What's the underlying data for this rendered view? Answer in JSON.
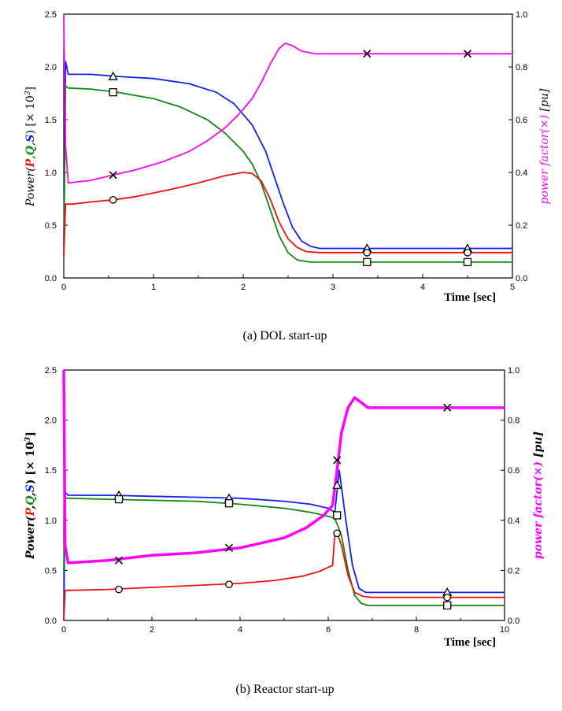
{
  "colors": {
    "P": "#ee1111",
    "Q": "#118811",
    "S": "#1122ee",
    "pf": "#ff00ff",
    "axis": "#000000"
  },
  "chart_data": [
    {
      "type": "line",
      "caption": "(a)  DOL  start-up",
      "xlabel": "Time [sec]",
      "ylabel": {
        "prefix": "Power(",
        "P": "P",
        "c1": ",",
        "Q": "Q",
        "c2": ",",
        "S": "S",
        "suffix": ") [× 10",
        "sup": "3",
        "end": "]"
      },
      "y2label": {
        "main": "power factor(×) ",
        "unit": "[pu]"
      },
      "xlim": [
        0,
        5
      ],
      "ylim": [
        0,
        2.5
      ],
      "y2lim": [
        0,
        1.0
      ],
      "xticks": [
        "0",
        "1",
        "2",
        "3",
        "4",
        "5"
      ],
      "yticks": [
        "0.0",
        "0.5",
        "1.0",
        "1.5",
        "2.0",
        "2.5"
      ],
      "y2ticks": [
        "0.0",
        "0.2",
        "0.4",
        "0.6",
        "0.8",
        "1.0"
      ],
      "series": [
        {
          "key": "S",
          "marker": "triangle",
          "axis": "left",
          "x": [
            0,
            0.02,
            0.05,
            0.3,
            0.6,
            1.0,
            1.4,
            1.7,
            1.9,
            2.1,
            2.25,
            2.35,
            2.45,
            2.55,
            2.65,
            2.75,
            2.85,
            3.0,
            5.0
          ],
          "y": [
            0.3,
            2.05,
            1.93,
            1.93,
            1.91,
            1.89,
            1.84,
            1.76,
            1.65,
            1.45,
            1.2,
            0.95,
            0.7,
            0.48,
            0.35,
            0.3,
            0.28,
            0.28,
            0.28
          ],
          "markers": [
            [
              0.55,
              1.91
            ],
            [
              3.38,
              0.28
            ],
            [
              4.5,
              0.28
            ]
          ]
        },
        {
          "key": "Q",
          "marker": "square",
          "axis": "left",
          "x": [
            0,
            0.02,
            0.05,
            0.3,
            0.6,
            1.0,
            1.3,
            1.6,
            1.8,
            2.0,
            2.1,
            2.2,
            2.3,
            2.4,
            2.5,
            2.6,
            2.75,
            3.0,
            5.0
          ],
          "y": [
            0.2,
            1.82,
            1.8,
            1.79,
            1.76,
            1.7,
            1.62,
            1.5,
            1.37,
            1.2,
            1.08,
            0.9,
            0.65,
            0.4,
            0.24,
            0.17,
            0.15,
            0.15,
            0.15
          ],
          "markers": [
            [
              0.55,
              1.76
            ],
            [
              3.38,
              0.15
            ],
            [
              4.5,
              0.15
            ]
          ]
        },
        {
          "key": "P",
          "marker": "circle",
          "axis": "left",
          "x": [
            0,
            0.02,
            0.1,
            0.3,
            0.55,
            0.8,
            1.2,
            1.5,
            1.8,
            2.0,
            2.1,
            2.2,
            2.3,
            2.4,
            2.5,
            2.6,
            2.7,
            2.85,
            3.0,
            5.0
          ],
          "y": [
            0.2,
            0.7,
            0.7,
            0.72,
            0.74,
            0.77,
            0.84,
            0.9,
            0.97,
            1.0,
            0.99,
            0.92,
            0.75,
            0.53,
            0.37,
            0.29,
            0.25,
            0.24,
            0.24,
            0.24
          ],
          "markers": [
            [
              0.55,
              0.74
            ],
            [
              3.38,
              0.24
            ],
            [
              4.5,
              0.24
            ]
          ]
        },
        {
          "key": "pf",
          "marker": "x",
          "axis": "right",
          "x": [
            0,
            0.02,
            0.05,
            0.3,
            0.55,
            0.8,
            1.1,
            1.4,
            1.6,
            1.8,
            1.95,
            2.1,
            2.2,
            2.3,
            2.4,
            2.47,
            2.55,
            2.65,
            2.8,
            2.95,
            3.1,
            5.0
          ],
          "y": [
            1.0,
            0.5,
            0.36,
            0.37,
            0.39,
            0.41,
            0.44,
            0.48,
            0.52,
            0.57,
            0.62,
            0.68,
            0.74,
            0.81,
            0.87,
            0.89,
            0.88,
            0.86,
            0.85,
            0.85,
            0.85,
            0.85
          ],
          "markers": [
            [
              0.55,
              0.39
            ],
            [
              3.38,
              0.85
            ],
            [
              4.5,
              0.85
            ]
          ]
        }
      ]
    },
    {
      "type": "line",
      "caption": "(b)  Reactor  start-up",
      "xlabel": "Time [sec]",
      "ylabel": {
        "prefix": "Power(",
        "P": "P",
        "c1": ",",
        "Q": "Q",
        "c2": ",",
        "S": "S",
        "suffix": ") [× 10",
        "sup": "3",
        "end": "]"
      },
      "y2label": {
        "main": "power factor(×) ",
        "unit": "[pu]"
      },
      "xlim": [
        0,
        10
      ],
      "ylim": [
        0,
        2.5
      ],
      "y2lim": [
        0,
        1.0
      ],
      "xticks": [
        "0",
        "2",
        "4",
        "6",
        "8",
        "10"
      ],
      "yticks": [
        "0.0",
        "0.5",
        "1.0",
        "1.5",
        "2.0",
        "2.5"
      ],
      "y2ticks": [
        "0.0",
        "0.2",
        "0.4",
        "0.6",
        "0.8",
        "1.0"
      ],
      "series": [
        {
          "key": "S",
          "marker": "triangle",
          "axis": "left",
          "x": [
            0,
            0.03,
            0.1,
            1.0,
            2.0,
            3.0,
            4.0,
            5.0,
            5.6,
            6.0,
            6.15,
            6.25,
            6.4,
            6.55,
            6.7,
            6.85,
            7.0,
            10.0
          ],
          "y": [
            0.0,
            1.28,
            1.25,
            1.25,
            1.24,
            1.23,
            1.22,
            1.19,
            1.16,
            1.12,
            1.08,
            1.5,
            1.0,
            0.55,
            0.32,
            0.28,
            0.28,
            0.28
          ],
          "markers": [
            [
              1.25,
              1.25
            ],
            [
              3.75,
              1.22
            ],
            [
              6.2,
              1.35
            ],
            [
              8.7,
              0.28
            ]
          ]
        },
        {
          "key": "Q",
          "marker": "square",
          "axis": "left",
          "x": [
            0,
            0.03,
            0.1,
            1.0,
            2.0,
            3.0,
            4.0,
            5.0,
            5.6,
            6.0,
            6.15,
            6.3,
            6.45,
            6.6,
            6.75,
            6.9,
            7.2,
            10.0
          ],
          "y": [
            0.5,
            1.22,
            1.22,
            1.21,
            1.2,
            1.19,
            1.16,
            1.12,
            1.08,
            1.04,
            1.02,
            0.85,
            0.5,
            0.25,
            0.17,
            0.15,
            0.15,
            0.15
          ],
          "markers": [
            [
              1.25,
              1.21
            ],
            [
              3.75,
              1.17
            ],
            [
              6.2,
              1.05
            ],
            [
              8.7,
              0.15
            ]
          ]
        },
        {
          "key": "P",
          "marker": "circle",
          "axis": "left",
          "x": [
            0,
            0.03,
            0.1,
            1.0,
            2.0,
            3.0,
            4.0,
            4.8,
            5.4,
            5.8,
            6.1,
            6.15,
            6.2,
            6.3,
            6.45,
            6.6,
            6.8,
            7.0,
            10.0
          ],
          "y": [
            0.0,
            0.3,
            0.3,
            0.31,
            0.33,
            0.35,
            0.37,
            0.4,
            0.44,
            0.49,
            0.55,
            0.87,
            0.88,
            0.75,
            0.45,
            0.28,
            0.24,
            0.23,
            0.23
          ],
          "markers": [
            [
              1.25,
              0.31
            ],
            [
              3.75,
              0.36
            ],
            [
              6.2,
              0.87
            ],
            [
              8.7,
              0.23
            ]
          ]
        },
        {
          "key": "pf",
          "marker": "x",
          "axis": "right",
          "x": [
            0,
            0.03,
            0.1,
            1.0,
            2.0,
            3.0,
            4.0,
            5.0,
            5.5,
            5.9,
            6.1,
            6.2,
            6.3,
            6.45,
            6.6,
            6.75,
            6.9,
            7.2,
            10.0
          ],
          "y": [
            1.0,
            0.3,
            0.23,
            0.24,
            0.26,
            0.27,
            0.29,
            0.33,
            0.37,
            0.42,
            0.46,
            0.6,
            0.75,
            0.85,
            0.89,
            0.87,
            0.85,
            0.85,
            0.85
          ],
          "markers": [
            [
              1.25,
              0.24
            ],
            [
              3.75,
              0.29
            ],
            [
              6.2,
              0.64
            ],
            [
              8.7,
              0.85
            ]
          ]
        }
      ]
    }
  ]
}
